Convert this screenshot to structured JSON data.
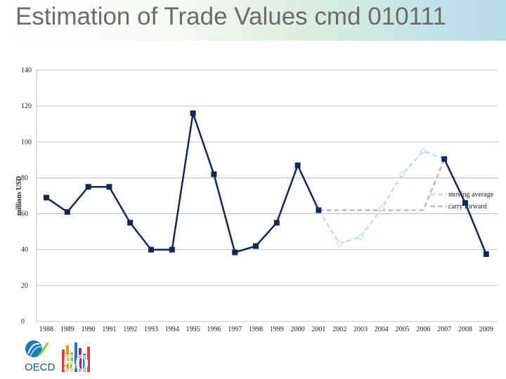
{
  "header": {
    "title": "Estimation of Trade Values cmd 010111"
  },
  "logo": {
    "text": "OECD",
    "number": "50"
  },
  "chart_data": {
    "type": "line",
    "title": "Estimation of Trade Values cmd 010111",
    "ylabel": "millions USD",
    "xlabel": "",
    "ylim": [
      0,
      140
    ],
    "yticks": [
      0,
      20,
      40,
      60,
      80,
      100,
      120,
      140
    ],
    "categories": [
      "1988",
      "1989",
      "1990",
      "1991",
      "1992",
      "1993",
      "1994",
      "1995",
      "1996",
      "1997",
      "1998",
      "1999",
      "2000",
      "2001",
      "2002",
      "2003",
      "2004",
      "2005",
      "2006",
      "2007",
      "2008",
      "2009"
    ],
    "grid": true,
    "legend_position": "right",
    "series": [
      {
        "name": "",
        "color": "#102a55",
        "style": "solid",
        "marker": "square",
        "values": [
          69,
          61,
          75,
          75,
          55,
          40,
          40,
          116,
          82,
          38.5,
          42,
          55,
          87,
          62,
          null,
          null,
          null,
          null,
          null,
          90.5,
          66,
          37.5
        ]
      },
      {
        "name": "moving average",
        "color": "#c5dde8",
        "style": "dashed",
        "marker": "diamond",
        "values": [
          null,
          null,
          null,
          null,
          null,
          null,
          null,
          null,
          null,
          null,
          null,
          null,
          null,
          62,
          43.5,
          47,
          63,
          82,
          95,
          90.5,
          null,
          null
        ]
      },
      {
        "name": "carry forward",
        "color": "#bdbdbd",
        "style": "dashed",
        "marker": "none",
        "values": [
          null,
          null,
          null,
          null,
          null,
          null,
          null,
          null,
          null,
          null,
          null,
          null,
          null,
          62,
          62,
          62,
          62,
          62,
          62,
          90.5,
          null,
          null
        ]
      }
    ]
  }
}
